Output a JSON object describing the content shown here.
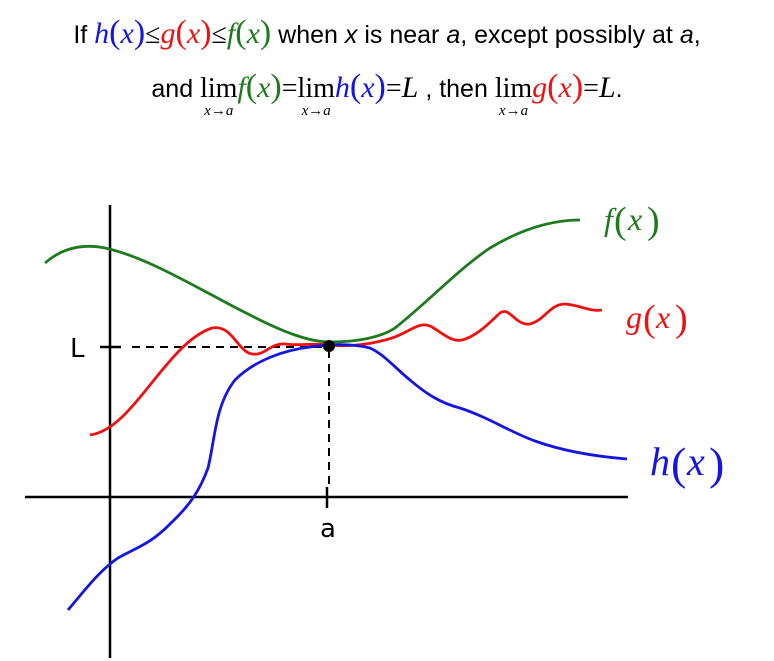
{
  "statement": {
    "if": "If",
    "h": "h",
    "g": "g",
    "f": "f",
    "x": "x",
    "le": "≤",
    "when": "when",
    "x_var": "x",
    "is_near": "is near",
    "a_var": "a",
    "except": ", except possibly at",
    "a_var2": "a",
    "comma": ",",
    "and": "and",
    "lim": "lim",
    "lim_sub": "x→a",
    "eq": "=",
    "L": "L",
    "then": ", then",
    "period": "."
  },
  "graph": {
    "labels": {
      "f": "f",
      "g": "g",
      "h": "h",
      "x": "x",
      "L": "L",
      "a": "a"
    }
  },
  "colors": {
    "f": "#1e7a1e",
    "g": "#ee1111",
    "h": "#1515e0",
    "axis": "#000000"
  }
}
